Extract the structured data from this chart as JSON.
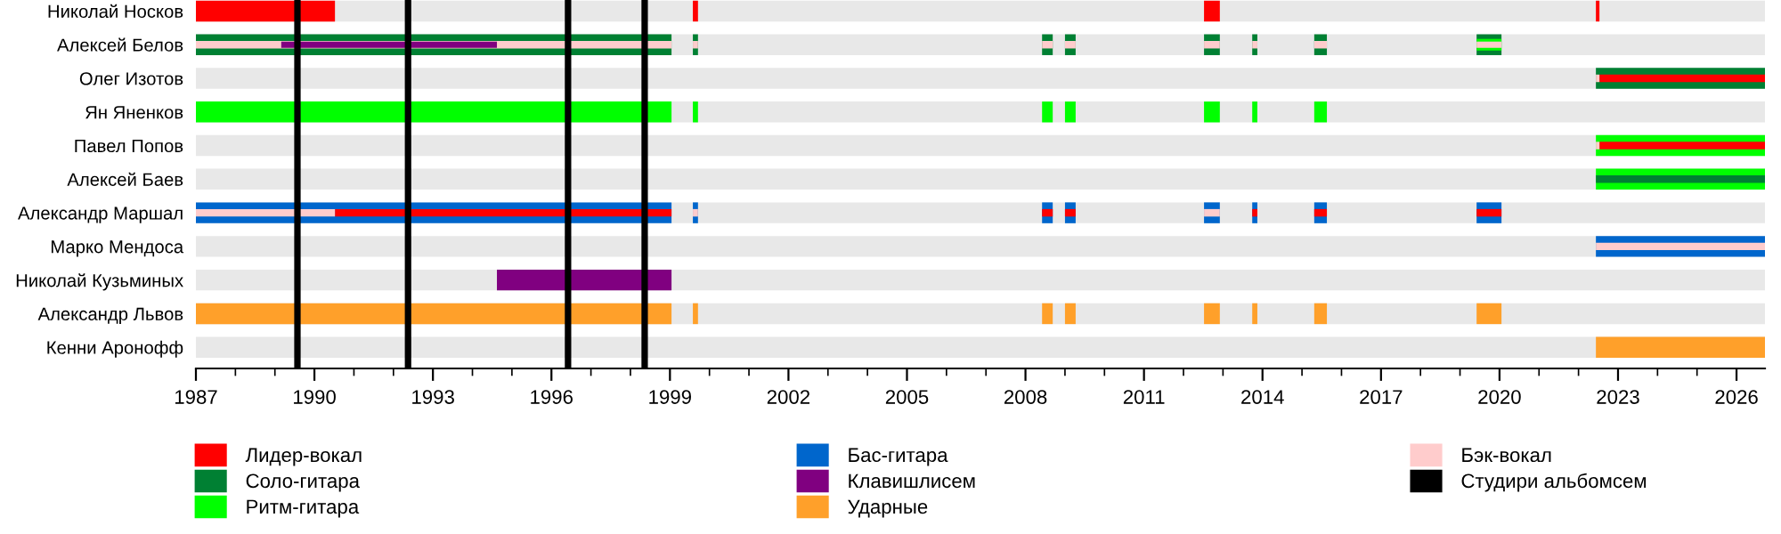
{
  "chart_data": {
    "type": "bar",
    "orientation": "horizontal",
    "legend": "bottom",
    "grid": false,
    "categories": [
      "Николай Носков",
      "Алексей Белов",
      "Олег Изотов",
      "Ян Яненков",
      "Павел Попов",
      "Алексей Баев",
      "Александр Маршал",
      "Марко Мендоса",
      "Николай Кузьминых",
      "Александр Львов",
      "Кенни Аронофф"
    ],
    "xlim": [
      1987,
      2026.72
    ],
    "xticks": [
      1987,
      1990,
      1993,
      1996,
      1999,
      2002,
      2005,
      2008,
      2011,
      2014,
      2017,
      2020,
      2023,
      2026
    ],
    "series": [
      {
        "name": "Лидер-вокал",
        "color": "#ff0000",
        "values": [
          3.52,
          null,
          null,
          null,
          null,
          null,
          null,
          null,
          null,
          null,
          null
        ],
        "base": [
          1987,
          null,
          null,
          null,
          null,
          null,
          null,
          null,
          null,
          null,
          null
        ]
      },
      {
        "color": "#ff0000",
        "values": [
          0.13,
          null,
          null,
          null,
          null,
          null,
          null,
          null,
          null,
          null,
          null
        ],
        "base": [
          1999.58,
          null,
          null,
          null,
          null,
          null,
          null,
          null,
          null,
          null,
          null
        ]
      },
      {
        "color": "#ff0000",
        "values": [
          0.4,
          null,
          null,
          null,
          null,
          null,
          null,
          null,
          null,
          null,
          null
        ],
        "base": [
          2012.52,
          null,
          null,
          null,
          null,
          null,
          null,
          null,
          null,
          null,
          null
        ]
      },
      {
        "color": "#ff0000",
        "values": [
          0.09,
          null,
          null,
          null,
          null,
          null,
          null,
          null,
          null,
          null,
          null
        ],
        "base": [
          2022.44,
          null,
          null,
          null,
          null,
          null,
          null,
          null,
          null,
          null,
          null
        ]
      },
      {
        "name": "Соло-гитара",
        "color": "#008033",
        "values": [
          null,
          12.04,
          4.28,
          null,
          null,
          null,
          null,
          null,
          null,
          null,
          null
        ],
        "base": [
          null,
          1987,
          2022.44,
          null,
          null,
          null,
          null,
          null,
          null,
          null,
          null
        ]
      },
      {
        "color": "#008033",
        "values": [
          null,
          0.13,
          null,
          null,
          null,
          null,
          null,
          null,
          null,
          null,
          null
        ],
        "base": [
          null,
          1999.58,
          null,
          null,
          null,
          null,
          null,
          null,
          null,
          null,
          null
        ]
      },
      {
        "color": "#008033",
        "values": [
          null,
          0.27,
          null,
          null,
          null,
          null,
          null,
          null,
          null,
          null,
          null
        ],
        "base": [
          null,
          2008.42,
          null,
          null,
          null,
          null,
          null,
          null,
          null,
          null,
          null
        ]
      },
      {
        "color": "#008033",
        "values": [
          null,
          0.27,
          null,
          null,
          null,
          null,
          null,
          null,
          null,
          null,
          null
        ],
        "base": [
          null,
          2009.0,
          null,
          null,
          null,
          null,
          null,
          null,
          null,
          null,
          null
        ]
      },
      {
        "color": "#008033",
        "values": [
          null,
          0.4,
          null,
          null,
          null,
          null,
          null,
          null,
          null,
          null,
          null
        ],
        "base": [
          null,
          2012.52,
          null,
          null,
          null,
          null,
          null,
          null,
          null,
          null,
          null
        ]
      },
      {
        "color": "#008033",
        "values": [
          null,
          0.13,
          null,
          null,
          null,
          null,
          null,
          null,
          null,
          null,
          null
        ],
        "base": [
          null,
          2013.74,
          null,
          null,
          null,
          null,
          null,
          null,
          null,
          null,
          null
        ]
      },
      {
        "color": "#008033",
        "values": [
          null,
          0.32,
          null,
          null,
          null,
          null,
          null,
          null,
          null,
          null,
          null
        ],
        "base": [
          null,
          2015.31,
          null,
          null,
          null,
          null,
          null,
          null,
          null,
          null,
          null
        ]
      },
      {
        "color": "#008033",
        "values": [
          null,
          0.63,
          null,
          null,
          null,
          null,
          null,
          null,
          null,
          null,
          null
        ],
        "base": [
          null,
          2019.42,
          null,
          null,
          null,
          null,
          null,
          null,
          null,
          null,
          null
        ]
      },
      {
        "name": "Ритм-гитара",
        "color": "#00ff00",
        "values": [
          null,
          0.63,
          null,
          12.04,
          4.28,
          4.28,
          null,
          null,
          null,
          null,
          null
        ],
        "base": [
          null,
          2019.42,
          null,
          1987,
          2022.44,
          2022.44,
          null,
          null,
          null,
          null,
          null
        ]
      },
      {
        "color": "#00ff00",
        "values": [
          null,
          null,
          null,
          0.13,
          null,
          null,
          null,
          null,
          null,
          null,
          null
        ],
        "base": [
          null,
          null,
          null,
          1999.58,
          null,
          null,
          null,
          null,
          null,
          null,
          null
        ]
      },
      {
        "color": "#00ff00",
        "values": [
          null,
          null,
          null,
          0.27,
          null,
          null,
          null,
          null,
          null,
          null,
          null
        ],
        "base": [
          null,
          null,
          null,
          2008.42,
          null,
          null,
          null,
          null,
          null,
          null,
          null
        ]
      },
      {
        "color": "#00ff00",
        "values": [
          null,
          null,
          null,
          0.27,
          null,
          null,
          null,
          null,
          null,
          null,
          null
        ],
        "base": [
          null,
          null,
          null,
          2009.0,
          null,
          null,
          null,
          null,
          null,
          null,
          null
        ]
      },
      {
        "color": "#00ff00",
        "values": [
          null,
          null,
          null,
          0.4,
          null,
          null,
          null,
          null,
          null,
          null,
          null
        ],
        "base": [
          null,
          null,
          null,
          2012.52,
          null,
          null,
          null,
          null,
          null,
          null,
          null
        ]
      },
      {
        "color": "#00ff00",
        "values": [
          null,
          null,
          null,
          0.13,
          null,
          null,
          null,
          null,
          null,
          null,
          null
        ],
        "base": [
          null,
          null,
          null,
          2013.74,
          null,
          null,
          null,
          null,
          null,
          null,
          null
        ]
      },
      {
        "color": "#00ff00",
        "values": [
          null,
          null,
          null,
          0.32,
          null,
          null,
          null,
          null,
          null,
          null,
          null
        ],
        "base": [
          null,
          null,
          null,
          2015.31,
          null,
          null,
          null,
          null,
          null,
          null,
          null
        ]
      },
      {
        "color": "#008033",
        "values": [
          null,
          null,
          null,
          null,
          null,
          4.28,
          null,
          null,
          null,
          null,
          null
        ],
        "base": [
          null,
          null,
          null,
          null,
          null,
          2022.44,
          null,
          null,
          null,
          null,
          null
        ]
      },
      {
        "name": "Бас-гитара",
        "color": "#0066cc",
        "values": [
          null,
          null,
          null,
          null,
          null,
          null,
          12.04,
          4.28,
          null,
          null,
          null
        ],
        "base": [
          null,
          null,
          null,
          null,
          null,
          null,
          1987,
          2022.44,
          null,
          null,
          null
        ]
      },
      {
        "color": "#0066cc",
        "values": [
          null,
          null,
          null,
          null,
          null,
          null,
          0.13,
          null,
          null,
          null,
          null
        ],
        "base": [
          null,
          null,
          null,
          null,
          null,
          null,
          1999.58,
          null,
          null,
          null,
          null
        ]
      },
      {
        "color": "#0066cc",
        "values": [
          null,
          null,
          null,
          null,
          null,
          null,
          0.27,
          null,
          null,
          null,
          null
        ],
        "base": [
          null,
          null,
          null,
          null,
          null,
          null,
          2008.42,
          null,
          null,
          null,
          null
        ]
      },
      {
        "color": "#0066cc",
        "values": [
          null,
          null,
          null,
          null,
          null,
          null,
          0.27,
          null,
          null,
          null,
          null
        ],
        "base": [
          null,
          null,
          null,
          null,
          null,
          null,
          2009.0,
          null,
          null,
          null,
          null
        ]
      },
      {
        "color": "#0066cc",
        "values": [
          null,
          null,
          null,
          null,
          null,
          null,
          0.4,
          null,
          null,
          null,
          null
        ],
        "base": [
          null,
          null,
          null,
          null,
          null,
          null,
          2012.52,
          null,
          null,
          null,
          null
        ]
      },
      {
        "color": "#0066cc",
        "values": [
          null,
          null,
          null,
          null,
          null,
          null,
          0.13,
          null,
          null,
          null,
          null
        ],
        "base": [
          null,
          null,
          null,
          null,
          null,
          null,
          2013.74,
          null,
          null,
          null,
          null
        ]
      },
      {
        "color": "#0066cc",
        "values": [
          null,
          null,
          null,
          null,
          null,
          null,
          0.32,
          null,
          null,
          null,
          null
        ],
        "base": [
          null,
          null,
          null,
          null,
          null,
          null,
          2015.31,
          null,
          null,
          null,
          null
        ]
      },
      {
        "color": "#0066cc",
        "values": [
          null,
          null,
          null,
          null,
          null,
          null,
          0.63,
          null,
          null,
          null,
          null
        ],
        "base": [
          null,
          null,
          null,
          null,
          null,
          null,
          2019.42,
          null,
          null,
          null,
          null
        ]
      },
      {
        "name": "Клавишлисем",
        "color": "#800080",
        "values": [
          null,
          null,
          null,
          null,
          null,
          null,
          null,
          null,
          4.42,
          null,
          null
        ],
        "base": [
          null,
          null,
          null,
          null,
          null,
          null,
          null,
          null,
          1994.62,
          null,
          null
        ]
      },
      {
        "name": "Ударные",
        "color": "#ffa02a",
        "values": [
          null,
          null,
          null,
          null,
          null,
          null,
          null,
          null,
          null,
          12.04,
          4.28
        ],
        "base": [
          null,
          null,
          null,
          null,
          null,
          null,
          null,
          null,
          null,
          1987,
          2022.44
        ]
      },
      {
        "color": "#ffa02a",
        "values": [
          null,
          null,
          null,
          null,
          null,
          null,
          null,
          null,
          null,
          0.13,
          null
        ],
        "base": [
          null,
          null,
          null,
          null,
          null,
          null,
          null,
          null,
          null,
          1999.58,
          null
        ]
      },
      {
        "color": "#ffa02a",
        "values": [
          null,
          null,
          null,
          null,
          null,
          null,
          null,
          null,
          null,
          0.27,
          null
        ],
        "base": [
          null,
          null,
          null,
          null,
          null,
          null,
          null,
          null,
          null,
          2008.42,
          null
        ]
      },
      {
        "color": "#ffa02a",
        "values": [
          null,
          null,
          null,
          null,
          null,
          null,
          null,
          null,
          null,
          0.27,
          null
        ],
        "base": [
          null,
          null,
          null,
          null,
          null,
          null,
          null,
          null,
          null,
          2009.0,
          null
        ]
      },
      {
        "color": "#ffa02a",
        "values": [
          null,
          null,
          null,
          null,
          null,
          null,
          null,
          null,
          null,
          0.4,
          null
        ],
        "base": [
          null,
          null,
          null,
          null,
          null,
          null,
          null,
          null,
          null,
          2012.52,
          null
        ]
      },
      {
        "color": "#ffa02a",
        "values": [
          null,
          null,
          null,
          null,
          null,
          null,
          null,
          null,
          null,
          0.13,
          null
        ],
        "base": [
          null,
          null,
          null,
          null,
          null,
          null,
          null,
          null,
          null,
          2013.74,
          null
        ]
      },
      {
        "color": "#ffa02a",
        "values": [
          null,
          null,
          null,
          null,
          null,
          null,
          null,
          null,
          null,
          0.32,
          null
        ],
        "base": [
          null,
          null,
          null,
          null,
          null,
          null,
          null,
          null,
          null,
          2015.31,
          null
        ]
      },
      {
        "color": "#ffa02a",
        "values": [
          null,
          null,
          null,
          null,
          null,
          null,
          null,
          null,
          null,
          0.63,
          null
        ],
        "base": [
          null,
          null,
          null,
          null,
          null,
          null,
          null,
          null,
          null,
          2019.42,
          null
        ]
      },
      {
        "color": "#ff0000",
        "values": [
          null,
          null,
          4.19,
          null,
          4.19,
          null,
          8.52,
          null,
          null,
          null,
          null
        ],
        "base": [
          null,
          null,
          2022.53,
          null,
          2022.53,
          null,
          1990.52,
          null,
          null,
          null,
          null
        ]
      },
      {
        "color": "#ff0000",
        "values": [
          null,
          null,
          null,
          null,
          null,
          null,
          0.27,
          null,
          null,
          null,
          null
        ],
        "base": [
          null,
          null,
          null,
          null,
          null,
          null,
          2008.42,
          null,
          null,
          null,
          null
        ]
      },
      {
        "color": "#ff0000",
        "values": [
          null,
          null,
          null,
          null,
          null,
          null,
          0.27,
          null,
          null,
          null,
          null
        ],
        "base": [
          null,
          null,
          null,
          null,
          null,
          null,
          2009.0,
          null,
          null,
          null,
          null
        ]
      },
      {
        "color": "#ff0000",
        "values": [
          null,
          null,
          null,
          null,
          null,
          null,
          0.13,
          null,
          null,
          null,
          null
        ],
        "base": [
          null,
          null,
          null,
          null,
          null,
          null,
          2013.74,
          null,
          null,
          null,
          null
        ]
      },
      {
        "color": "#ff0000",
        "values": [
          null,
          null,
          null,
          null,
          null,
          null,
          0.32,
          null,
          null,
          null,
          null
        ],
        "base": [
          null,
          null,
          null,
          null,
          null,
          null,
          2015.31,
          null,
          null,
          null,
          null
        ]
      },
      {
        "color": "#ff0000",
        "values": [
          null,
          null,
          null,
          null,
          null,
          null,
          0.63,
          null,
          null,
          null,
          null
        ],
        "base": [
          null,
          null,
          null,
          null,
          null,
          null,
          2019.42,
          null,
          null,
          null,
          null
        ]
      },
      {
        "name": "Бэк-вокал",
        "color": "#ffcccc",
        "values": [
          null,
          12.04,
          0.09,
          null,
          0.09,
          null,
          3.52,
          4.28,
          null,
          null,
          null
        ],
        "base": [
          null,
          1987,
          2022.44,
          null,
          2022.44,
          null,
          1987,
          2022.44,
          null,
          null,
          null
        ]
      },
      {
        "color": "#ffcccc",
        "values": [
          null,
          0.13,
          null,
          null,
          null,
          null,
          0.13,
          null,
          null,
          null,
          null
        ],
        "base": [
          null,
          1999.58,
          null,
          null,
          null,
          null,
          1999.58,
          null,
          null,
          null,
          null
        ]
      },
      {
        "color": "#ffcccc",
        "values": [
          null,
          0.27,
          null,
          null,
          null,
          null,
          null,
          null,
          null,
          null,
          null
        ],
        "base": [
          null,
          2008.42,
          null,
          null,
          null,
          null,
          null,
          null,
          null,
          null,
          null
        ]
      },
      {
        "color": "#ffcccc",
        "values": [
          null,
          0.27,
          null,
          null,
          null,
          null,
          null,
          null,
          null,
          null,
          null
        ],
        "base": [
          null,
          2009.0,
          null,
          null,
          null,
          null,
          null,
          null,
          null,
          null,
          null
        ]
      },
      {
        "color": "#ffcccc",
        "values": [
          null,
          0.4,
          null,
          null,
          null,
          null,
          0.4,
          null,
          null,
          null,
          null
        ],
        "base": [
          null,
          2012.52,
          null,
          null,
          null,
          null,
          2012.52,
          null,
          null,
          null,
          null
        ]
      },
      {
        "color": "#ffcccc",
        "values": [
          null,
          0.13,
          null,
          null,
          null,
          null,
          null,
          null,
          null,
          null,
          null
        ],
        "base": [
          null,
          2013.74,
          null,
          null,
          null,
          null,
          null,
          null,
          null,
          null,
          null
        ]
      },
      {
        "color": "#ffcccc",
        "values": [
          null,
          0.32,
          null,
          null,
          null,
          null,
          null,
          null,
          null,
          null,
          null
        ],
        "base": [
          null,
          2015.31,
          null,
          null,
          null,
          null,
          null,
          null,
          null,
          null,
          null
        ]
      },
      {
        "color": "#ffcccc",
        "values": [
          null,
          0.63,
          null,
          null,
          null,
          null,
          null,
          null,
          null,
          null,
          null
        ],
        "base": [
          null,
          2019.42,
          null,
          null,
          null,
          null,
          null,
          null,
          null,
          null,
          null
        ]
      },
      {
        "color": "#800080",
        "values": [
          null,
          5.46,
          null,
          null,
          null,
          null,
          null,
          null,
          null,
          null,
          null
        ],
        "base": [
          null,
          1989.16,
          null,
          null,
          null,
          null,
          null,
          null,
          null,
          null,
          null
        ]
      }
    ],
    "ref_lines": [
      {
        "axis": "x",
        "value": 1989.57,
        "label": "Студири альбомсем",
        "color": "#000000"
      },
      {
        "axis": "x",
        "value": 1992.37,
        "color": "#000000"
      },
      {
        "axis": "x",
        "value": 1996.42,
        "color": "#000000"
      },
      {
        "axis": "x",
        "value": 1998.36,
        "color": "#000000"
      }
    ]
  }
}
